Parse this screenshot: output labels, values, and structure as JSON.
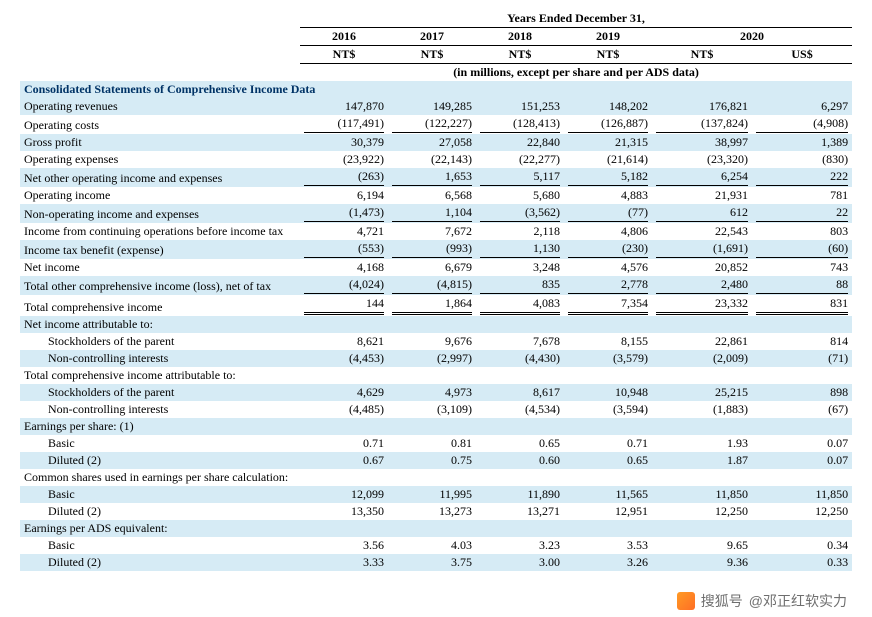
{
  "table": {
    "header_top": "Years Ended December 31,",
    "years": [
      "2016",
      "2017",
      "2018",
      "2019",
      "2020"
    ],
    "currencies": [
      "NT$",
      "NT$",
      "NT$",
      "NT$",
      "NT$",
      "US$"
    ],
    "note": "(in millions, except per share and per ADS data)",
    "section_title": "Consolidated Statements of Comprehensive Income Data",
    "rows": [
      {
        "label": "Operating revenues",
        "v": [
          "147,870",
          "149,285",
          "151,253",
          "148,202",
          "176,821",
          "6,297"
        ],
        "shade": true
      },
      {
        "label": "Operating costs",
        "v": [
          "(117,491)",
          "(122,227)",
          "(128,413)",
          "(126,887)",
          "(137,824)",
          "(4,908)"
        ],
        "underline": true
      },
      {
        "label": "Gross profit",
        "v": [
          "30,379",
          "27,058",
          "22,840",
          "21,315",
          "38,997",
          "1,389"
        ],
        "shade": true
      },
      {
        "label": "Operating expenses",
        "v": [
          "(23,922)",
          "(22,143)",
          "(22,277)",
          "(21,614)",
          "(23,320)",
          "(830)"
        ]
      },
      {
        "label": "Net other operating income and expenses",
        "v": [
          "(263)",
          "1,653",
          "5,117",
          "5,182",
          "6,254",
          "222"
        ],
        "shade": true,
        "underline": true
      },
      {
        "label": "Operating income",
        "v": [
          "6,194",
          "6,568",
          "5,680",
          "4,883",
          "21,931",
          "781"
        ]
      },
      {
        "label": "Non-operating income and expenses",
        "v": [
          "(1,473)",
          "1,104",
          "(3,562)",
          "(77)",
          "612",
          "22"
        ],
        "shade": true,
        "underline": true
      },
      {
        "label": "Income from continuing operations before income tax",
        "v": [
          "4,721",
          "7,672",
          "2,118",
          "4,806",
          "22,543",
          "803"
        ]
      },
      {
        "label": "Income tax benefit (expense)",
        "v": [
          "(553)",
          "(993)",
          "1,130",
          "(230)",
          "(1,691)",
          "(60)"
        ],
        "shade": true,
        "underline": true
      },
      {
        "label": "Net income",
        "v": [
          "4,168",
          "6,679",
          "3,248",
          "4,576",
          "20,852",
          "743"
        ]
      },
      {
        "label": "Total other comprehensive income (loss), net of tax",
        "v": [
          "(4,024)",
          "(4,815)",
          "835",
          "2,778",
          "2,480",
          "88"
        ],
        "shade": true,
        "underline": true
      },
      {
        "label": "Total comprehensive income",
        "v": [
          "144",
          "1,864",
          "4,083",
          "7,354",
          "23,332",
          "831"
        ],
        "dbl": true
      },
      {
        "label": "Net income attributable to:",
        "v": [
          "",
          "",
          "",
          "",
          "",
          ""
        ],
        "shade": true
      },
      {
        "label": "Stockholders of the parent",
        "v": [
          "8,621",
          "9,676",
          "7,678",
          "8,155",
          "22,861",
          "814"
        ],
        "indent": 2
      },
      {
        "label": "Non-controlling interests",
        "v": [
          "(4,453)",
          "(2,997)",
          "(4,430)",
          "(3,579)",
          "(2,009)",
          "(71)"
        ],
        "shade": true,
        "indent": 2
      },
      {
        "label": "Total comprehensive income attributable to:",
        "v": [
          "",
          "",
          "",
          "",
          "",
          ""
        ]
      },
      {
        "label": "Stockholders of the parent",
        "v": [
          "4,629",
          "4,973",
          "8,617",
          "10,948",
          "25,215",
          "898"
        ],
        "shade": true,
        "indent": 2
      },
      {
        "label": "Non-controlling interests",
        "v": [
          "(4,485)",
          "(3,109)",
          "(4,534)",
          "(3,594)",
          "(1,883)",
          "(67)"
        ],
        "indent": 2
      },
      {
        "label": "Earnings per share: (1)",
        "v": [
          "",
          "",
          "",
          "",
          "",
          ""
        ],
        "shade": true
      },
      {
        "label": "Basic",
        "v": [
          "0.71",
          "0.81",
          "0.65",
          "0.71",
          "1.93",
          "0.07"
        ],
        "indent": 2
      },
      {
        "label": "Diluted (2)",
        "v": [
          "0.67",
          "0.75",
          "0.60",
          "0.65",
          "1.87",
          "0.07"
        ],
        "shade": true,
        "indent": 2
      },
      {
        "label": "Common shares used in earnings per share calculation:",
        "v": [
          "",
          "",
          "",
          "",
          "",
          ""
        ]
      },
      {
        "label": "Basic",
        "v": [
          "12,099",
          "11,995",
          "11,890",
          "11,565",
          "11,850",
          "11,850"
        ],
        "shade": true,
        "indent": 2
      },
      {
        "label": "Diluted (2)",
        "v": [
          "13,350",
          "13,273",
          "13,271",
          "12,951",
          "12,250",
          "12,250"
        ],
        "indent": 2
      },
      {
        "label": "Earnings per ADS equivalent:",
        "v": [
          "",
          "",
          "",
          "",
          "",
          ""
        ],
        "shade": true
      },
      {
        "label": "Basic",
        "v": [
          "3.56",
          "4.03",
          "3.23",
          "3.53",
          "9.65",
          "0.34"
        ],
        "indent": 2
      },
      {
        "label": "Diluted (2)",
        "v": [
          "3.33",
          "3.75",
          "3.00",
          "3.26",
          "9.36",
          "0.33"
        ],
        "shade": true,
        "indent": 2
      }
    ]
  },
  "watermark": {
    "brand": "搜狐号",
    "author": "@邓正红软实力"
  },
  "style": {
    "shade_color": "#d6ebf5",
    "title_color": "#003366",
    "font_family": "Times New Roman",
    "font_size_pt": 12
  }
}
